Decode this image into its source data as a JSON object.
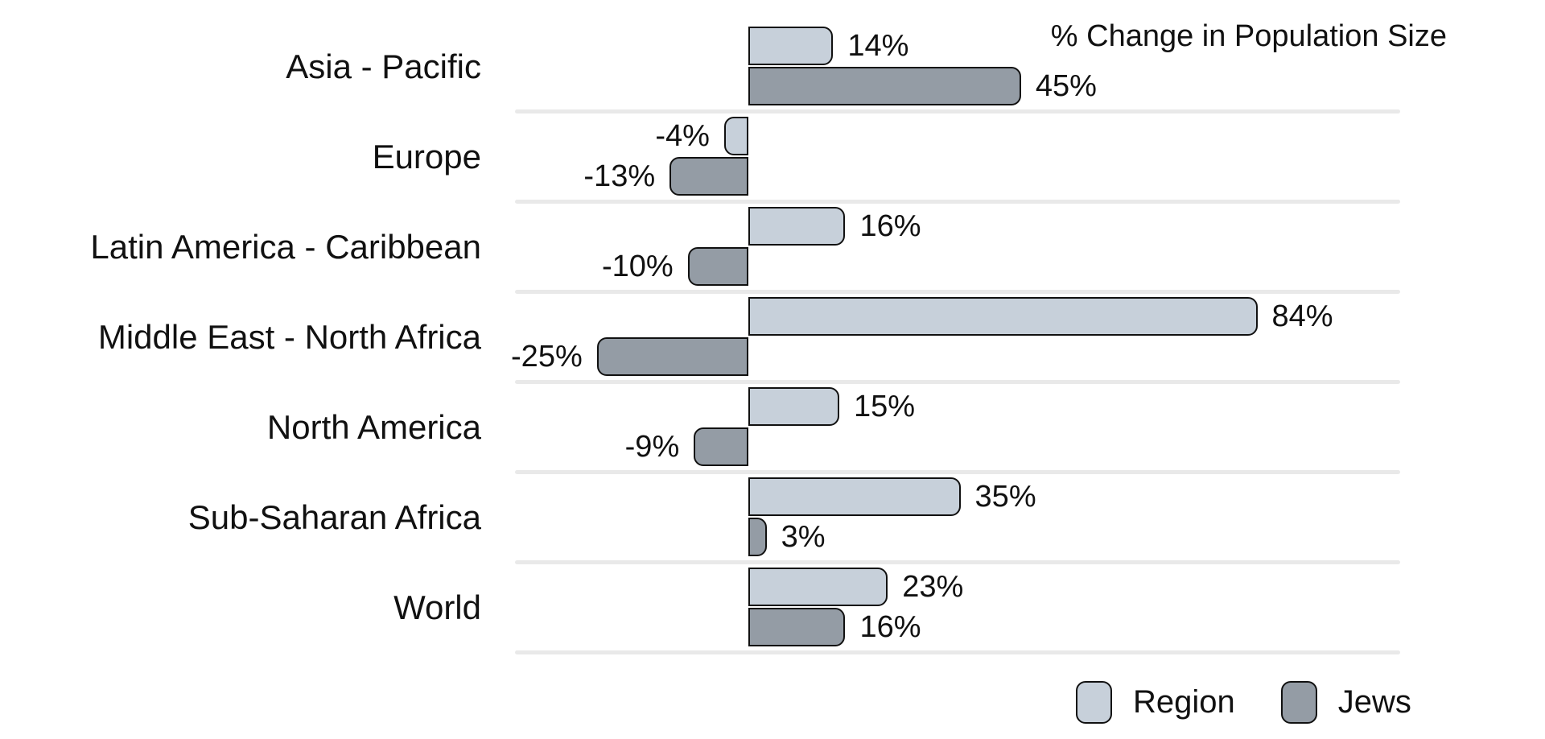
{
  "chart": {
    "title": "% Change in Population Size",
    "background_color": "#ffffff",
    "separator_color": "#e9e9e9",
    "bar_border_color": "#111111",
    "text_color": "#111111"
  },
  "chart_data": {
    "type": "bar",
    "orientation": "horizontal",
    "title": "% Change in Population Size",
    "xlabel": "",
    "ylabel": "",
    "xlim": [
      -25,
      84
    ],
    "grid": "row-separator-lines",
    "legend_position": "bottom-right",
    "value_suffix": "%",
    "categories": [
      "Asia - Pacific",
      "Europe",
      "Latin America - Caribbean",
      "Middle East - North Africa",
      "North America",
      "Sub-Saharan Africa",
      "World"
    ],
    "series": [
      {
        "name": "Region",
        "color": "#c7d0da",
        "values": [
          14,
          -4,
          16,
          84,
          15,
          35,
          23
        ],
        "labels": [
          "14%",
          "-4%",
          "16%",
          "84%",
          "15%",
          "35%",
          "23%"
        ]
      },
      {
        "name": "Jews",
        "color": "#949ca5",
        "values": [
          45,
          -13,
          -10,
          -25,
          -9,
          3,
          16
        ],
        "labels": [
          "45%",
          "-13%",
          "-10%",
          "-25%",
          "-9%",
          "3%",
          "16%"
        ]
      }
    ]
  },
  "legend": {
    "items": [
      {
        "label": "Region",
        "color": "#c7d0da"
      },
      {
        "label": "Jews",
        "color": "#949ca5"
      }
    ]
  }
}
